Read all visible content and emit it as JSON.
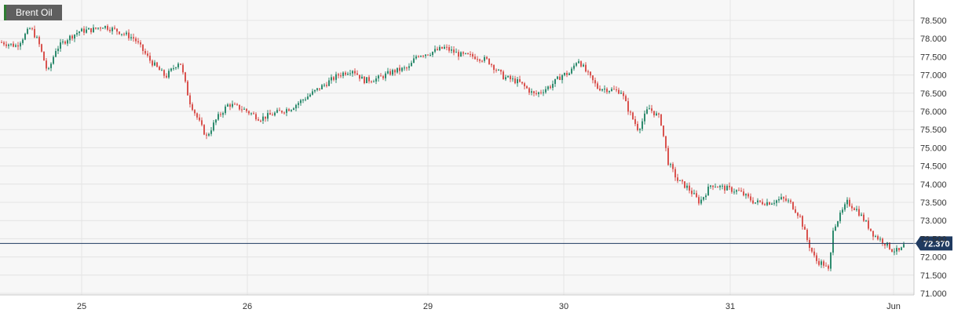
{
  "chart_data": {
    "type": "candlestick",
    "title": "Brent Oil",
    "current_price": "72.370",
    "ylim": [
      71.0,
      78.5
    ],
    "y_ticks": [
      "71.000",
      "71.500",
      "72.000",
      "72.500",
      "73.000",
      "73.500",
      "74.000",
      "74.500",
      "75.000",
      "75.500",
      "76.000",
      "76.500",
      "77.000",
      "77.500",
      "78.000",
      "78.500"
    ],
    "x_ticks": [
      "25",
      "26",
      "29",
      "30",
      "31",
      "Jun"
    ],
    "grid": true,
    "colors": {
      "up": "#2e8b6e",
      "down": "#d9534f",
      "price_line": "#1f3a60",
      "grid": "#e4e4e4",
      "bg": "#f7f7f7"
    },
    "series": [
      {
        "segment": "start",
        "close": 77.9
      },
      {
        "segment": "25-open",
        "close": 77.8
      },
      {
        "segment": "25-low",
        "close": 77.05
      },
      {
        "segment": "25-mid",
        "close": 78.2
      },
      {
        "segment": "25-high",
        "close": 78.35
      },
      {
        "segment": "25-late",
        "close": 78.0
      },
      {
        "segment": "25-drop",
        "close": 76.9
      },
      {
        "segment": "25-bottom",
        "close": 75.4
      },
      {
        "segment": "26-open",
        "close": 75.9
      },
      {
        "segment": "26-mid",
        "close": 76.1
      },
      {
        "segment": "26-dip",
        "close": 75.8
      },
      {
        "segment": "26-late",
        "close": 76.5
      },
      {
        "segment": "26-close",
        "close": 76.9
      },
      {
        "segment": "29-open",
        "close": 77.6
      },
      {
        "segment": "29-high",
        "close": 77.75
      },
      {
        "segment": "29-late",
        "close": 77.5
      },
      {
        "segment": "29-drop",
        "close": 76.8
      },
      {
        "segment": "30-open",
        "close": 76.3
      },
      {
        "segment": "30-spike",
        "close": 77.45
      },
      {
        "segment": "30-mid",
        "close": 76.6
      },
      {
        "segment": "30-late",
        "close": 75.6
      },
      {
        "segment": "30-drop",
        "close": 76.0
      },
      {
        "segment": "31-open",
        "close": 74.2
      },
      {
        "segment": "31-mid",
        "close": 73.9
      },
      {
        "segment": "31-late",
        "close": 73.5
      },
      {
        "segment": "31-low",
        "close": 71.6
      },
      {
        "segment": "31-rebound",
        "close": 73.5
      },
      {
        "segment": "jun-open",
        "close": 72.8
      },
      {
        "segment": "jun-close",
        "close": 72.37
      }
    ]
  }
}
